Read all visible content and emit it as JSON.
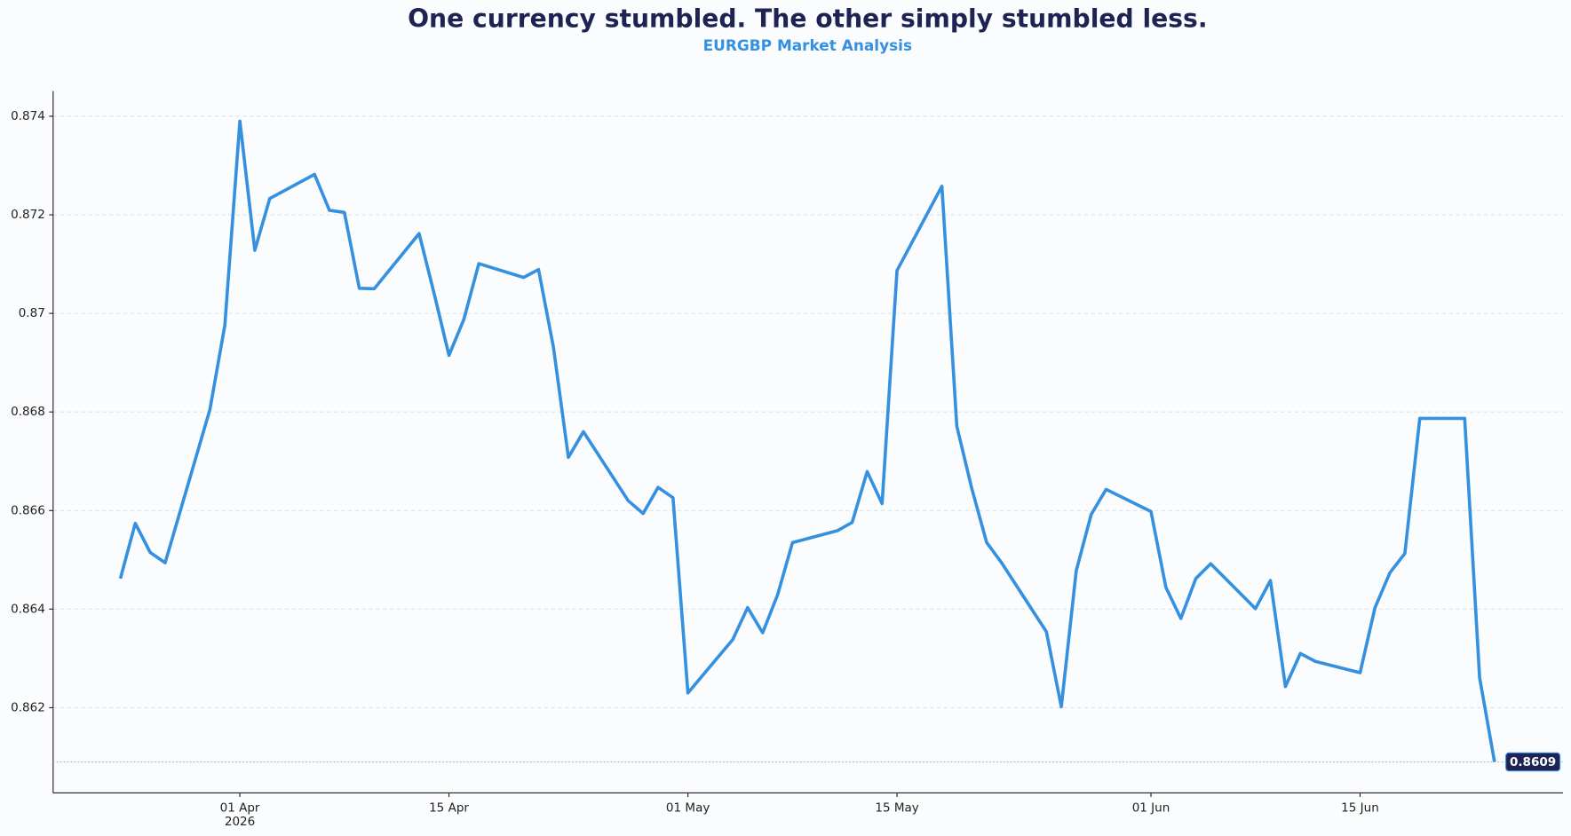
{
  "chart_data": {
    "type": "line",
    "title": "One currency stumbled. The other simply stumbled less.",
    "subtitle": "EURGBP Market Analysis",
    "color": "#3590e0",
    "x": [
      "2026-03-24",
      "2026-03-25",
      "2026-03-26",
      "2026-03-27",
      "2026-03-30",
      "2026-03-31",
      "2026-04-01",
      "2026-04-02",
      "2026-04-03",
      "2026-04-06",
      "2026-04-07",
      "2026-04-08",
      "2026-04-09",
      "2026-04-10",
      "2026-04-13",
      "2026-04-14",
      "2026-04-15",
      "2026-04-16",
      "2026-04-17",
      "2026-04-20",
      "2026-04-21",
      "2026-04-22",
      "2026-04-23",
      "2026-04-24",
      "2026-04-27",
      "2026-04-28",
      "2026-04-29",
      "2026-04-30",
      "2026-05-01",
      "2026-05-04",
      "2026-05-05",
      "2026-05-06",
      "2026-05-07",
      "2026-05-08",
      "2026-05-11",
      "2026-05-12",
      "2026-05-13",
      "2026-05-14",
      "2026-05-15",
      "2026-05-18",
      "2026-05-19",
      "2026-05-20",
      "2026-05-21",
      "2026-05-22",
      "2026-05-25",
      "2026-05-26",
      "2026-05-27",
      "2026-05-28",
      "2026-05-29",
      "2026-06-01",
      "2026-06-02",
      "2026-06-03",
      "2026-06-04",
      "2026-06-05",
      "2026-06-08",
      "2026-06-09",
      "2026-06-10",
      "2026-06-11",
      "2026-06-12",
      "2026-06-15",
      "2026-06-16",
      "2026-06-17",
      "2026-06-18",
      "2026-06-19",
      "2026-06-22",
      "2026-06-23",
      "2026-06-24"
    ],
    "values": [
      0.86462,
      0.86574,
      0.86515,
      0.86494,
      0.86805,
      0.86976,
      0.8739,
      0.87128,
      0.87233,
      0.87282,
      0.87209,
      0.87205,
      0.87051,
      0.8705,
      0.87162,
      0.87041,
      0.86915,
      0.86988,
      0.87101,
      0.87073,
      0.87089,
      0.86931,
      0.86708,
      0.8676,
      0.8662,
      0.86594,
      0.86647,
      0.86626,
      0.8623,
      0.86338,
      0.86403,
      0.86352,
      0.86429,
      0.86535,
      0.86559,
      0.86576,
      0.86679,
      0.86614,
      0.87087,
      0.87258,
      0.86771,
      0.86645,
      0.86535,
      0.86494,
      0.86354,
      0.86202,
      0.86478,
      0.86592,
      0.86643,
      0.86598,
      0.86444,
      0.86381,
      0.86462,
      0.86492,
      0.86401,
      0.86458,
      0.86243,
      0.8631,
      0.86294,
      0.86271,
      0.86403,
      0.86474,
      0.86513,
      0.86787,
      0.86787,
      0.86261,
      0.8609
    ],
    "last_value_label": "0.8609",
    "xlim": [
      "2026-03-19T12:00",
      "2026-06-28T14:00"
    ],
    "xticks": [
      {
        "value": "2026-04-01",
        "label": "01 Apr\n2026"
      },
      {
        "value": "2026-04-15",
        "label": "15 Apr"
      },
      {
        "value": "2026-05-01",
        "label": "01 May"
      },
      {
        "value": "2026-05-15",
        "label": "15 May"
      },
      {
        "value": "2026-06-01",
        "label": "01 Jun"
      },
      {
        "value": "2026-06-15",
        "label": "15 Jun"
      }
    ],
    "ylim": [
      0.86027,
      0.87451
    ],
    "yticks": [
      0.862,
      0.864,
      0.866,
      0.868,
      0.87,
      0.872,
      0.874
    ],
    "grid": true
  }
}
